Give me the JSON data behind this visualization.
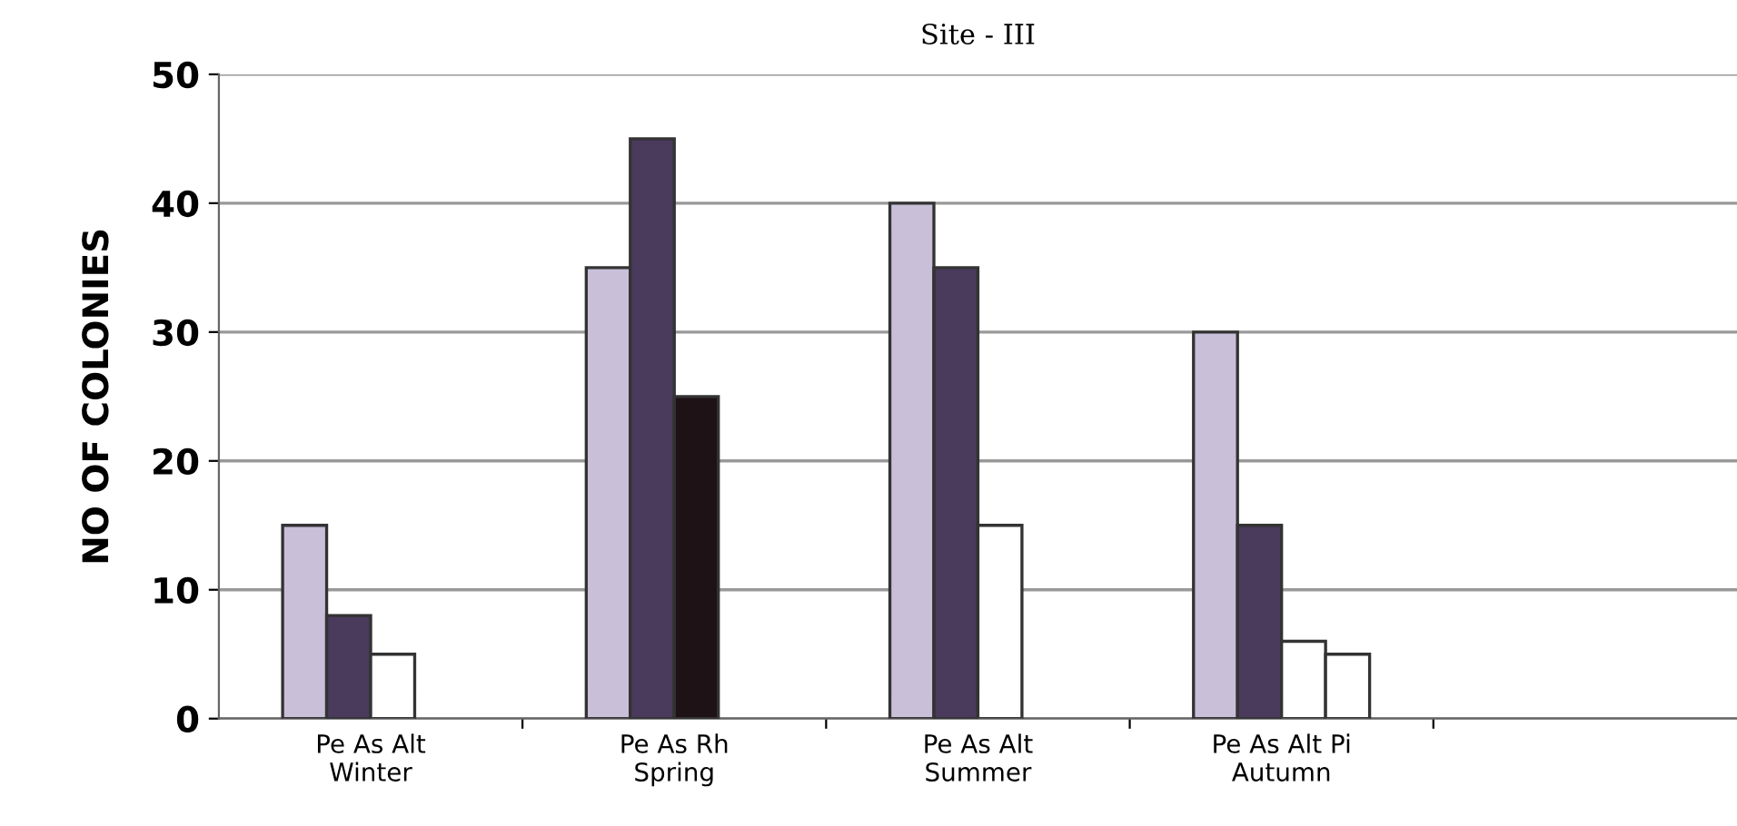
{
  "chart_data": {
    "type": "bar",
    "title": "Site - III",
    "ylabel": "NO OF COLONIES",
    "categories": [
      "Pe As Alt\nWinter",
      "Pe As Rh\nSpring",
      "Pe As Alt\nSummer",
      "Pe As Alt Pi\nAutumn",
      null
    ],
    "series": [
      {
        "color": "#c9bfd9",
        "values": [
          15,
          35,
          40,
          30,
          null
        ]
      },
      {
        "color": "#4a3a5c",
        "values": [
          8,
          45,
          35,
          15,
          null
        ]
      },
      {
        "colors": [
          "#ffffff",
          "#1e1216",
          "#ffffff",
          "#ffffff",
          "#ffffff"
        ],
        "values": [
          5,
          25,
          15,
          6,
          null
        ]
      },
      {
        "color": "#ffffff",
        "values": [
          null,
          null,
          null,
          5,
          null
        ]
      }
    ],
    "ylim": [
      0,
      50
    ],
    "yticks": [
      0,
      10,
      20,
      30,
      40,
      50
    ],
    "grid": "y",
    "legend": false
  }
}
